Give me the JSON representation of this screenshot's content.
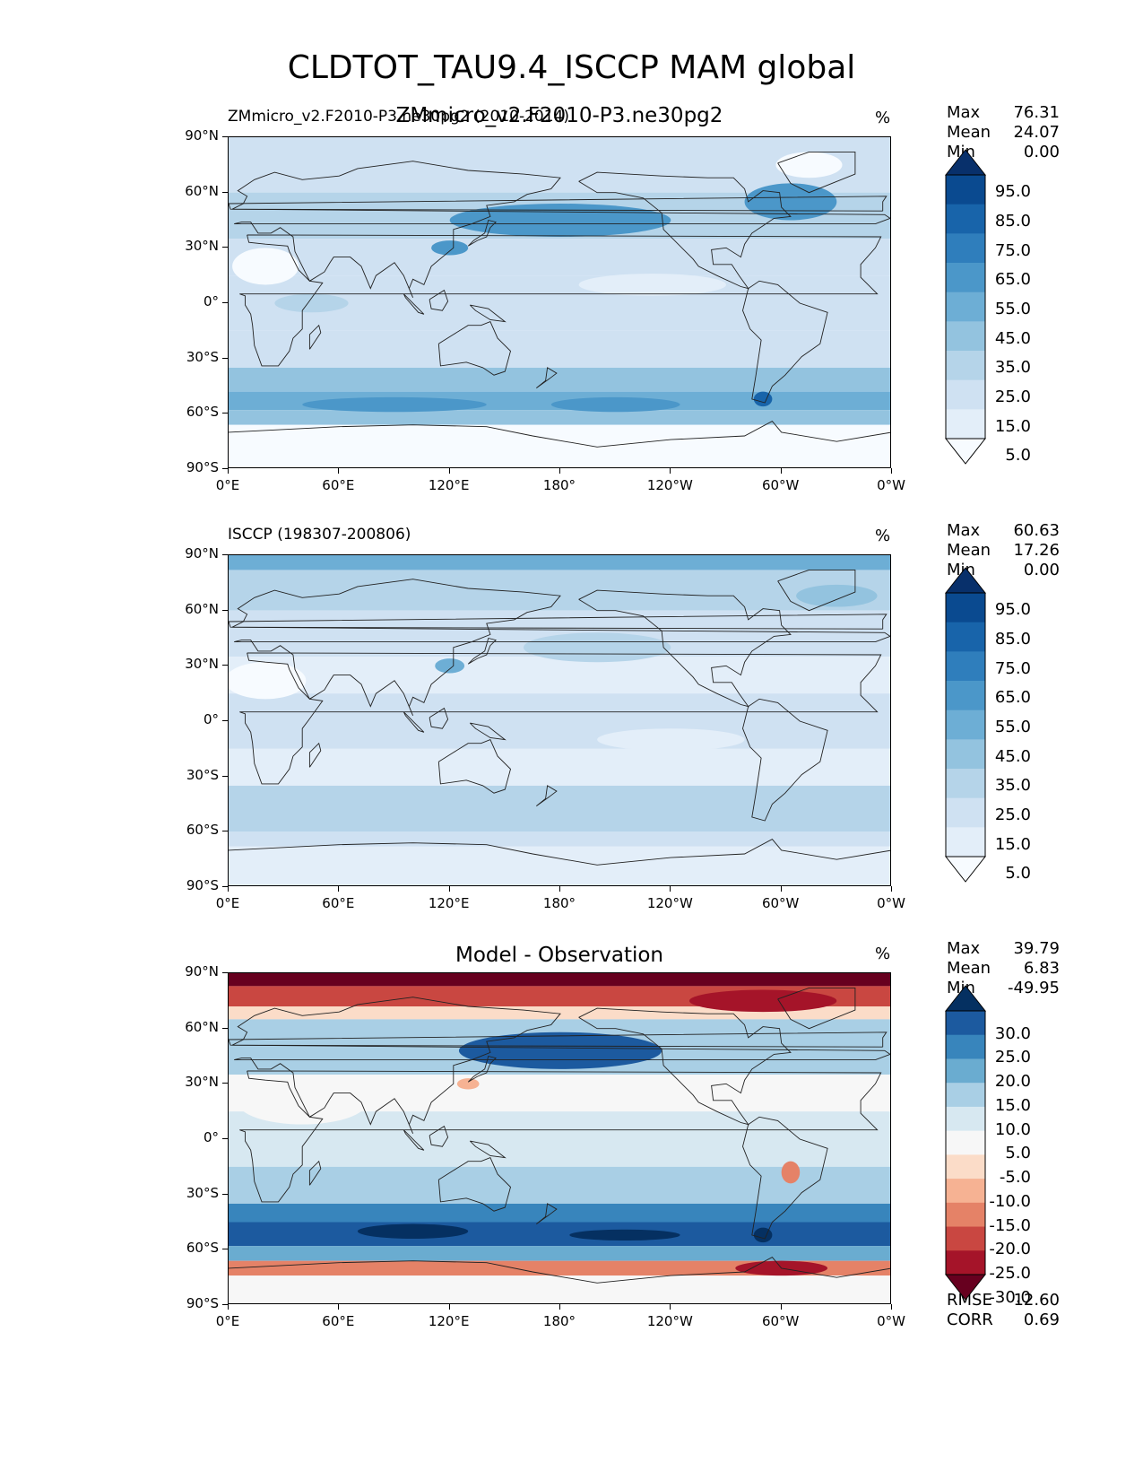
{
  "figure": {
    "title": "CLDTOT_TAU9.4_ISCCP MAM global"
  },
  "chart_data": [
    {
      "type": "heatmap",
      "name": "test",
      "title_left": "ZMmicro_v2.F2010-P3.ne30pg2 (2010-2014)",
      "title_center": "ZMmicro_v2.F2010-P3.ne30pg2",
      "units": "%",
      "stats": {
        "max": "76.31",
        "mean": "24.07",
        "min": "0.00"
      },
      "colormap": "Blues",
      "levels": [
        0,
        5,
        15,
        25,
        35,
        45,
        55,
        65,
        75,
        85,
        95,
        100
      ],
      "colorbar_labels": [
        "95.0",
        "85.0",
        "75.0",
        "65.0",
        "55.0",
        "45.0",
        "35.0",
        "25.0",
        "15.0",
        "5.0"
      ],
      "xticks": [
        "0°E",
        "60°E",
        "120°E",
        "180°",
        "120°W",
        "60°W",
        "0°W"
      ],
      "yticks": [
        "90°N",
        "60°N",
        "30°N",
        "0°",
        "30°S",
        "60°S",
        "90°S"
      ]
    },
    {
      "type": "heatmap",
      "name": "reference",
      "title_left": "ISCCP (198307-200806)",
      "units": "%",
      "stats": {
        "max": "60.63",
        "mean": "17.26",
        "min": "0.00"
      },
      "colormap": "Blues",
      "levels": [
        0,
        5,
        15,
        25,
        35,
        45,
        55,
        65,
        75,
        85,
        95,
        100
      ],
      "colorbar_labels": [
        "95.0",
        "85.0",
        "75.0",
        "65.0",
        "55.0",
        "45.0",
        "35.0",
        "25.0",
        "15.0",
        "5.0"
      ],
      "xticks": [
        "0°E",
        "60°E",
        "120°E",
        "180°",
        "120°W",
        "60°W",
        "0°W"
      ],
      "yticks": [
        "90°N",
        "60°N",
        "30°N",
        "0°",
        "30°S",
        "60°S",
        "90°S"
      ]
    },
    {
      "type": "heatmap",
      "name": "difference",
      "title_center": "Model - Observation",
      "units": "%",
      "stats": {
        "max": "39.79",
        "mean": "6.83",
        "min": "-49.95",
        "rmse": "12.60",
        "corr": "0.69"
      },
      "colormap": "RdBu",
      "levels": [
        -30,
        -25,
        -20,
        -15,
        -10,
        -5,
        5,
        10,
        15,
        20,
        25,
        30
      ],
      "colorbar_labels": [
        "30.0",
        "25.0",
        "20.0",
        "15.0",
        "10.0",
        "5.0",
        "-5.0",
        "-10.0",
        "-15.0",
        "-20.0",
        "-25.0",
        "-30.0"
      ],
      "xticks": [
        "0°E",
        "60°E",
        "120°E",
        "180°",
        "120°W",
        "60°W",
        "0°W"
      ],
      "yticks": [
        "90°N",
        "60°N",
        "30°N",
        "0°",
        "30°S",
        "60°S",
        "90°S"
      ]
    }
  ],
  "stat_labels": {
    "max": "Max",
    "mean": "Mean",
    "min": "Min",
    "rmse": "RMSE",
    "corr": "CORR"
  },
  "colors": {
    "blues": [
      "#f7fbff",
      "#e3eef9",
      "#cfe1f2",
      "#b5d4e9",
      "#93c3df",
      "#6daed5",
      "#4b97c9",
      "#2f7ebc",
      "#1864aa",
      "#0a4a90",
      "#08306b"
    ],
    "rdbu": [
      "#67001f",
      "#a51429",
      "#c94741",
      "#e58267",
      "#f6b293",
      "#fbdcc8",
      "#f7f7f7",
      "#d7e8f1",
      "#a9cfe5",
      "#6aacd0",
      "#3885bc",
      "#1c5a9f",
      "#053061"
    ]
  }
}
